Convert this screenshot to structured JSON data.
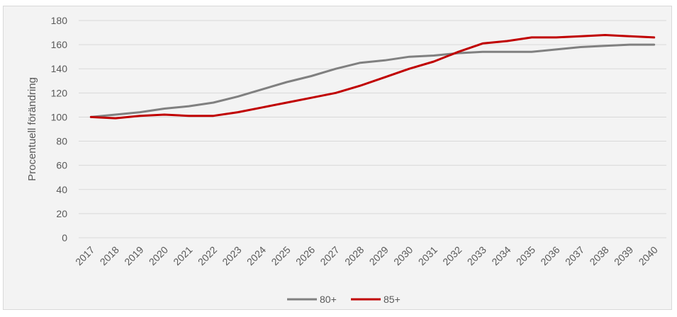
{
  "chart_data": {
    "type": "line",
    "title": "",
    "xlabel": "",
    "ylabel": "Procentuell förändring",
    "ylim": [
      0,
      180
    ],
    "yticks": [
      0,
      20,
      40,
      60,
      80,
      100,
      120,
      140,
      160,
      180
    ],
    "grid": "horizontal",
    "legend_position": "bottom",
    "categories": [
      "2017",
      "2018",
      "2019",
      "2020",
      "2021",
      "2022",
      "2023",
      "2024",
      "2025",
      "2026",
      "2027",
      "2028",
      "2029",
      "2030",
      "2031",
      "2032",
      "2033",
      "2034",
      "2035",
      "2036",
      "2037",
      "2038",
      "2039",
      "2040"
    ],
    "series": [
      {
        "name": "80+",
        "color": "#808080",
        "values": [
          100,
          102,
          104,
          107,
          109,
          112,
          117,
          123,
          129,
          134,
          140,
          145,
          147,
          150,
          151,
          153,
          154,
          154,
          154,
          156,
          158,
          159,
          160,
          160
        ]
      },
      {
        "name": "85+",
        "color": "#c00000",
        "values": [
          100,
          99,
          101,
          102,
          101,
          101,
          104,
          108,
          112,
          116,
          120,
          126,
          133,
          140,
          146,
          154,
          161,
          163,
          166,
          166,
          167,
          168,
          167,
          166
        ]
      }
    ]
  }
}
